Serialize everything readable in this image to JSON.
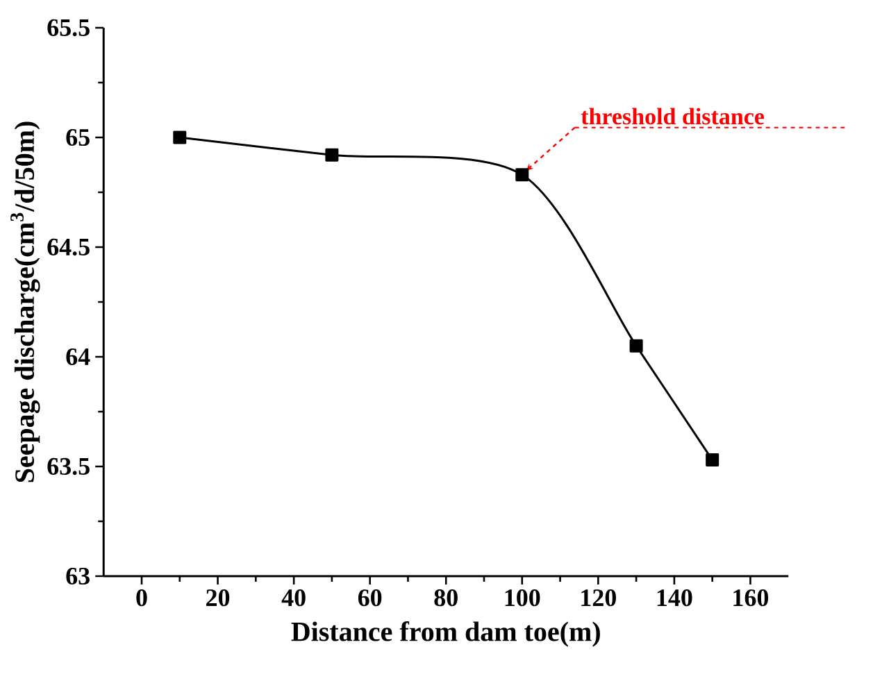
{
  "chart_data": {
    "type": "line",
    "xlabel": "Distance from dam toe(m)",
    "ylabel": "Seepage discharge(cm$^{3}$/d/50m)",
    "x": [
      10,
      50,
      100,
      130,
      150
    ],
    "series": [
      {
        "color": "#000000",
        "values": [
          65.0,
          64.92,
          64.83,
          64.05,
          63.53
        ]
      }
    ],
    "xlim": [
      -10,
      170
    ],
    "xticks": [
      0,
      20,
      40,
      60,
      80,
      100,
      120,
      140,
      160
    ],
    "ylim": [
      63,
      65.5
    ],
    "yticks": [
      63,
      63.5,
      64,
      64.5,
      65,
      65.5
    ],
    "marker": "square",
    "line_style": "solid",
    "grid": false,
    "annotations": [
      {
        "text": "threshold distance",
        "x": 100,
        "y": 64.83
      }
    ]
  }
}
